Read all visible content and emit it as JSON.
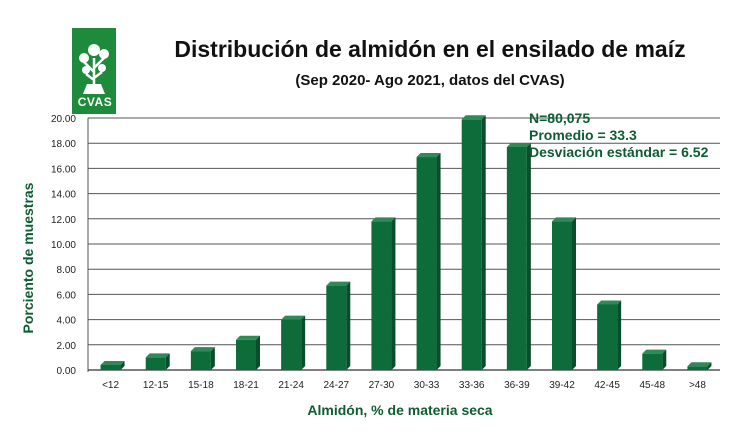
{
  "logo": {
    "text": "CVAS",
    "color": "#1e8a3b"
  },
  "stats": {
    "n": "N=80,075",
    "mean": "Promedio = 33.3",
    "sd": "Desviación estándar = 6.52"
  },
  "chart_data": {
    "type": "bar",
    "title": "Distribución de almidón en el ensilado de maíz",
    "subtitle": "(Sep 2020- Ago 2021, datos del CVAS)",
    "xlabel": "Almidón, % de materia seca",
    "ylabel": "Porciento de muestras",
    "categories": [
      "<12",
      "12-15",
      "15-18",
      "18-21",
      "21-24",
      "24-27",
      "27-30",
      "30-33",
      "33-36",
      "36-39",
      "39-42",
      "42-45",
      "45-48",
      ">48"
    ],
    "values": [
      0.4,
      1.0,
      1.5,
      2.4,
      4.0,
      6.7,
      11.8,
      16.9,
      19.9,
      17.7,
      11.8,
      5.2,
      1.3,
      0.3
    ],
    "ylim": [
      0,
      20
    ],
    "yticks": [
      "0.00",
      "2.00",
      "4.00",
      "6.00",
      "8.00",
      "10.00",
      "12.00",
      "14.00",
      "16.00",
      "18.00",
      "20.00"
    ],
    "grid": true,
    "bar_color": "#0e6b3a"
  }
}
